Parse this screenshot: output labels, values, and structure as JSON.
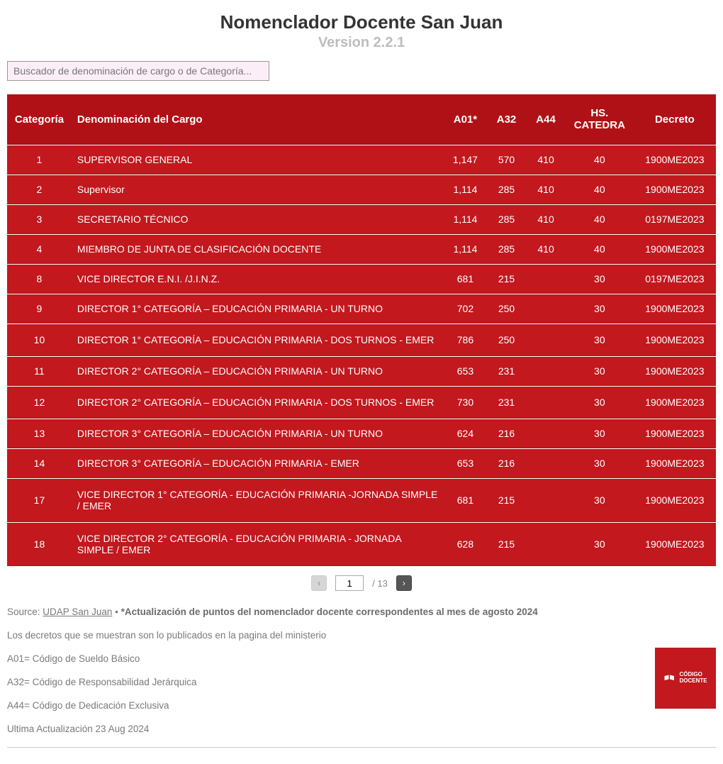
{
  "header": {
    "title": "Nomenclador Docente San Juan",
    "version": "Version 2.2.1"
  },
  "search": {
    "placeholder": "Buscador de denominación de cargo o de Categoría..."
  },
  "table": {
    "columns": {
      "categoria": "Categoría",
      "denominacion": "Denominación del Cargo",
      "a01": "A01*",
      "a32": "A32",
      "a44": "A44",
      "hs": "HS. CATEDRA",
      "decreto": "Decreto"
    },
    "rows": [
      {
        "cat": "1",
        "denom": "SUPERVISOR GENERAL",
        "a01": "1,147",
        "a32": "570",
        "a44": "410",
        "hs": "40",
        "dec": "1900ME2023"
      },
      {
        "cat": "2",
        "denom": "Supervisor",
        "a01": "1,114",
        "a32": "285",
        "a44": "410",
        "hs": "40",
        "dec": "1900ME2023"
      },
      {
        "cat": "3",
        "denom": "SECRETARIO TÉCNICO",
        "a01": "1,114",
        "a32": "285",
        "a44": "410",
        "hs": "40",
        "dec": "0197ME2023"
      },
      {
        "cat": "4",
        "denom": "MIEMBRO DE JUNTA DE CLASIFICACIÓN DOCENTE",
        "a01": "1,114",
        "a32": "285",
        "a44": "410",
        "hs": "40",
        "dec": "1900ME2023"
      },
      {
        "cat": "8",
        "denom": "VICE DIRECTOR E.N.I. /J.I.N.Z.",
        "a01": "681",
        "a32": "215",
        "a44": "",
        "hs": "30",
        "dec": "0197ME2023"
      },
      {
        "cat": "9",
        "denom": "DIRECTOR 1° CATEGORÍA – EDUCACIÓN PRIMARIA - UN TURNO",
        "a01": "702",
        "a32": "250",
        "a44": "",
        "hs": "30",
        "dec": "1900ME2023"
      },
      {
        "cat": "10",
        "denom": "DIRECTOR 1° CATEGORÍA – EDUCACIÓN PRIMARIA - DOS TURNOS - EMER",
        "a01": "786",
        "a32": "250",
        "a44": "",
        "hs": "30",
        "dec": "1900ME2023"
      },
      {
        "cat": "11",
        "denom": "DIRECTOR 2° CATEGORÍA – EDUCACIÓN PRIMARIA - UN TURNO",
        "a01": "653",
        "a32": "231",
        "a44": "",
        "hs": "30",
        "dec": "1900ME2023"
      },
      {
        "cat": "12",
        "denom": "DIRECTOR 2° CATEGORÍA – EDUCACIÓN PRIMARIA - DOS TURNOS - EMER",
        "a01": "730",
        "a32": "231",
        "a44": "",
        "hs": "30",
        "dec": "1900ME2023"
      },
      {
        "cat": "13",
        "denom": "DIRECTOR 3° CATEGORÍA – EDUCACIÓN PRIMARIA - UN TURNO",
        "a01": "624",
        "a32": "216",
        "a44": "",
        "hs": "30",
        "dec": "1900ME2023"
      },
      {
        "cat": "14",
        "denom": "DIRECTOR 3° CATEGORÍA – EDUCACIÓN PRIMARIA - EMER",
        "a01": "653",
        "a32": "216",
        "a44": "",
        "hs": "30",
        "dec": "1900ME2023"
      },
      {
        "cat": "17",
        "denom": "VICE DIRECTOR 1° CATEGORÍA - EDUCACIÓN PRIMARIA -JORNADA SIMPLE / EMER",
        "a01": "681",
        "a32": "215",
        "a44": "",
        "hs": "30",
        "dec": "1900ME2023"
      },
      {
        "cat": "18",
        "denom": "VICE DIRECTOR 2° CATEGORÍA - EDUCACIÓN PRIMARIA - JORNADA SIMPLE / EMER",
        "a01": "628",
        "a32": "215",
        "a44": "",
        "hs": "30",
        "dec": "1900ME2023"
      }
    ],
    "styling": {
      "header_bg": "#b01116",
      "row_bg": "#c2181e",
      "text_color": "#ffffff",
      "border_color": "#a7141a",
      "font_size_header": 15,
      "font_size_body": 14,
      "col_widths": {
        "categoria": 90,
        "denominacion": 520,
        "a01": 60,
        "a32": 55,
        "a44": 55,
        "hs": 95,
        "decreto": 115
      }
    }
  },
  "pager": {
    "prev": "‹",
    "next": "›",
    "current": "1",
    "total": "/ 13"
  },
  "footer": {
    "source_label": "Source: ",
    "source_link": "UDAP San Juan",
    "source_sep": " • ",
    "source_bold": "*Actualización de puntos del nomenclador docente correspondentes al mes de agosto 2024",
    "line2": "Los decretos que se muestran son lo publicados en la pagina del ministerio",
    "line3": "A01= Código de Sueldo Básico",
    "line4": "A32= Código de Responsabilidad Jerárquica",
    "line5": "A44= Código de Dedicación Exclusiva",
    "line6": "Ultima Actualización 23 Aug 2024"
  },
  "logo": {
    "line1": "CÓDIGO",
    "line2": "DOCENTE",
    "bg": "#c2181e"
  }
}
